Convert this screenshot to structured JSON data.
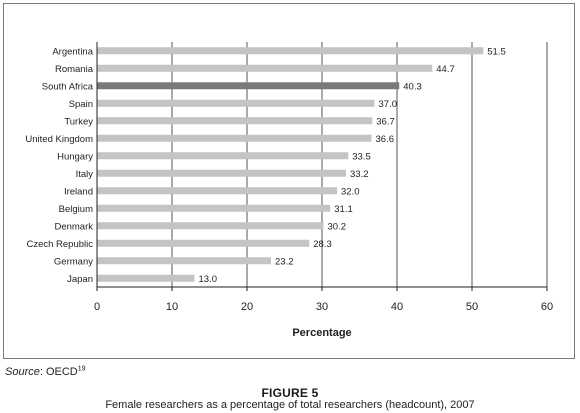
{
  "chart_data": {
    "type": "bar",
    "orientation": "horizontal",
    "categories": [
      "Argentina",
      "Romania",
      "South Africa",
      "Spain",
      "Turkey",
      "United Kingdom",
      "Hungary",
      "Italy",
      "Ireland",
      "Belgium",
      "Denmark",
      "Czech Republic",
      "Germany",
      "Japan"
    ],
    "values": [
      51.5,
      44.7,
      40.3,
      37.0,
      36.7,
      36.6,
      33.5,
      33.2,
      32.0,
      31.1,
      30.2,
      28.3,
      23.2,
      13.0
    ],
    "value_labels": [
      "51.5",
      "44.7",
      "40.3",
      "37.0",
      "36.7",
      "36.6",
      "33.5",
      "33.2",
      "32.0",
      "31.1",
      "30.2",
      "28.3",
      "23.2",
      "13.0"
    ],
    "highlight_category": "South Africa",
    "xlabel": "Percentage",
    "ylabel": "",
    "xlim": [
      0,
      60
    ],
    "xticks": [
      0,
      10,
      20,
      30,
      40,
      50,
      60
    ],
    "grid": "vertical",
    "colors": {
      "bar": "#c4c4c4",
      "highlight": "#7a7a7a",
      "grid": "#555555",
      "axis": "#222222"
    }
  },
  "source": {
    "label": "Source",
    "text": ": OECD",
    "footnote": "19"
  },
  "figure": {
    "number": "FIGURE 5",
    "caption": "Female researchers as a percentage of total researchers (headcount), 2007"
  }
}
